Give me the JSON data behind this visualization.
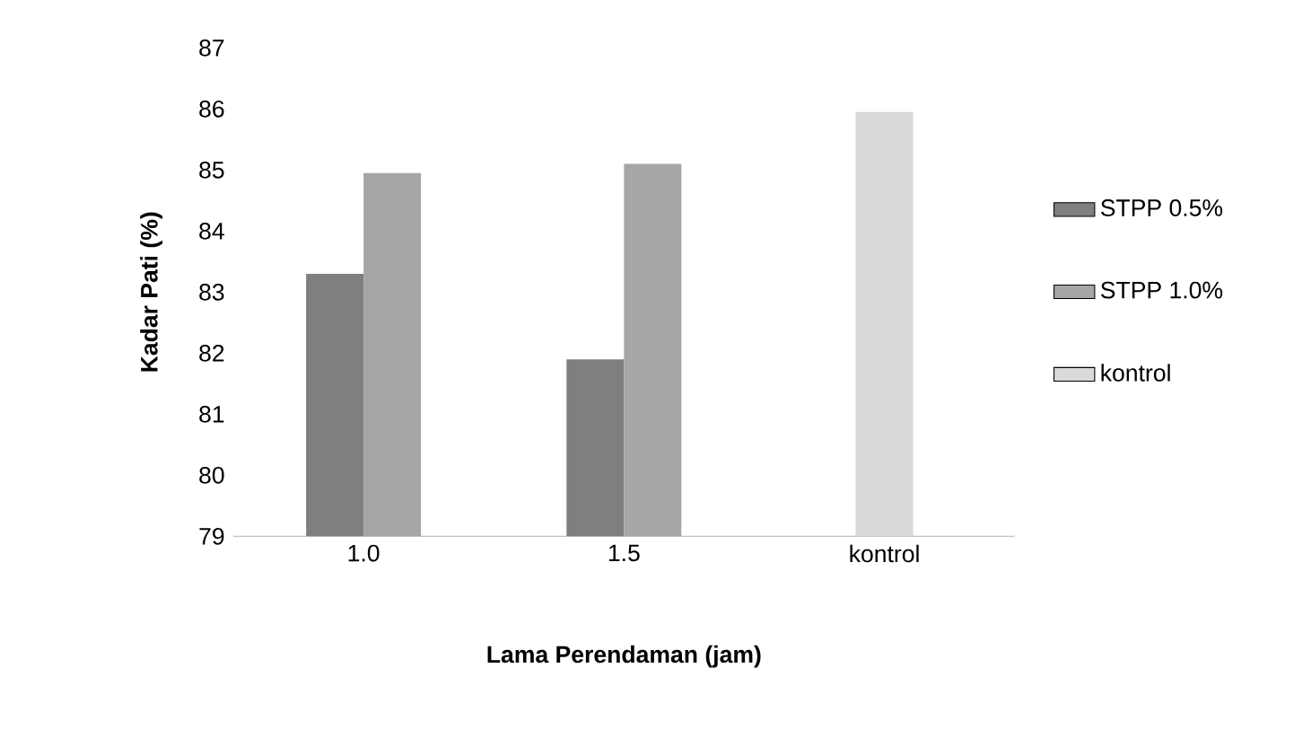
{
  "chart_data": {
    "type": "bar",
    "xlabel": "Lama Perendaman (jam)",
    "ylabel": "Kadar Pati (%)",
    "categories": [
      "1.0",
      "1.5",
      "kontrol"
    ],
    "series": [
      {
        "name": "STPP 0.5%",
        "color": "#7f7f7f",
        "values": [
          83.3,
          81.9,
          null
        ]
      },
      {
        "name": "STPP 1.0%",
        "color": "#a6a6a6",
        "values": [
          84.95,
          85.1,
          null
        ]
      },
      {
        "name": "kontrol",
        "color": "#d9d9d9",
        "values": [
          null,
          null,
          85.95
        ]
      }
    ],
    "ylim": [
      79,
      87
    ],
    "yticks": [
      79,
      80,
      81,
      82,
      83,
      84,
      85,
      86,
      87
    ],
    "legend": "right"
  }
}
